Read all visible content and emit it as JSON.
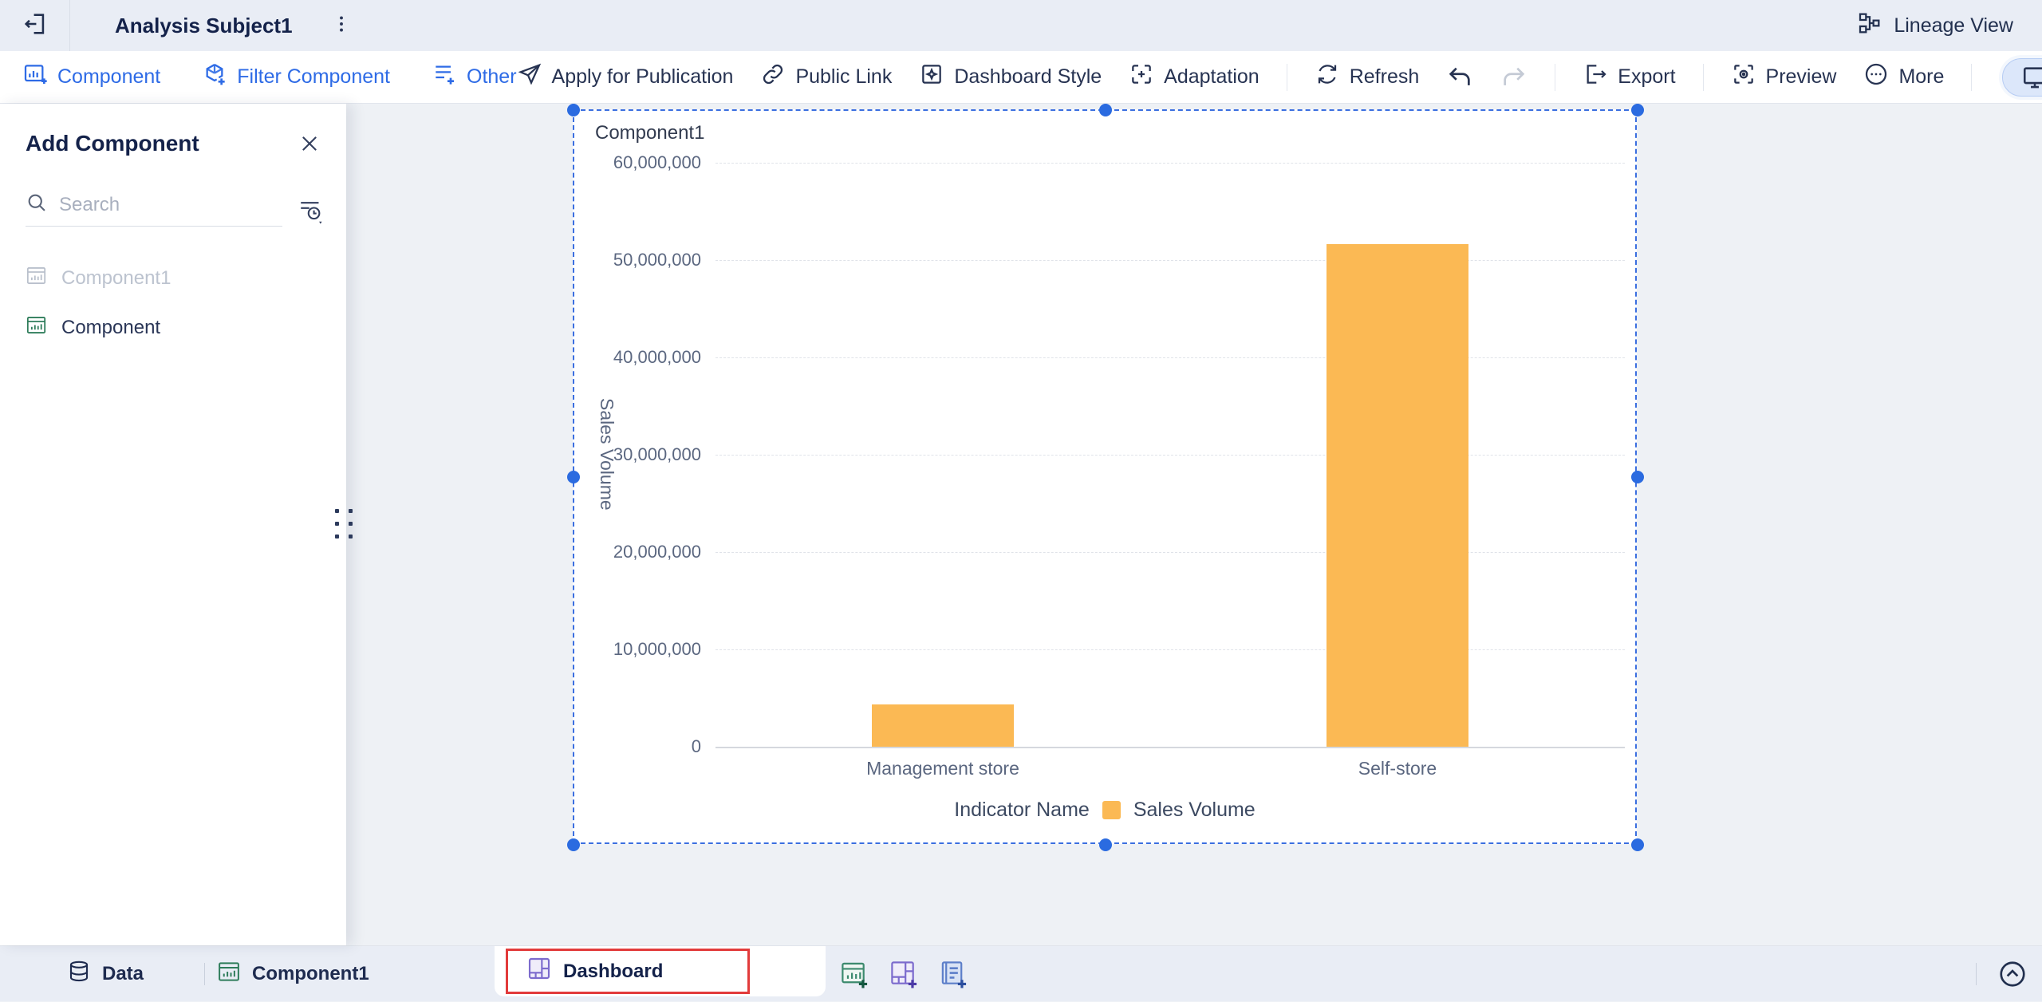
{
  "topbar": {
    "title": "Analysis Subject1",
    "lineage_label": "Lineage View"
  },
  "toolbar": {
    "component": "Component",
    "filter_component": "Filter Component",
    "other": "Other",
    "apply": "Apply for Publication",
    "public_link": "Public Link",
    "dashboard_style": "Dashboard Style",
    "adaptation": "Adaptation",
    "refresh": "Refresh",
    "export": "Export",
    "preview": "Preview",
    "more": "More"
  },
  "panel": {
    "title": "Add Component",
    "search_placeholder": "Search",
    "items": [
      {
        "label": "Component1",
        "disabled": true
      },
      {
        "label": "Component",
        "disabled": false
      }
    ]
  },
  "chart_data": {
    "type": "bar",
    "title": "Component1",
    "categories": [
      "Management store",
      "Self-store"
    ],
    "series": [
      {
        "name": "Sales Volume",
        "color": "#FBB954",
        "values": [
          4350000,
          51600000
        ]
      }
    ],
    "ylabel": "Sales Volume",
    "legend_title": "Indicator Name",
    "legend_position": "bottom",
    "ylim": [
      0,
      60000000
    ],
    "yticks": [
      0,
      10000000,
      20000000,
      30000000,
      40000000,
      50000000,
      60000000
    ],
    "grid": "horizontal-dashed"
  },
  "bottombar": {
    "data_tab": "Data",
    "component_tab": "Component1",
    "dashboard_tab": "Dashboard"
  },
  "colors": {
    "accent_blue": "#2E6BE6",
    "bar_orange": "#FBB954",
    "annotation_red": "#E23B3B"
  }
}
